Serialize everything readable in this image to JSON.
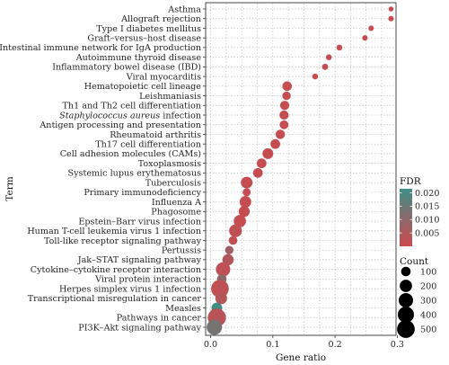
{
  "chart_data": {
    "type": "scatter",
    "xlabel": "Gene ratio",
    "ylabel": "Term",
    "xlim": [
      -0.008,
      0.298
    ],
    "xticks": [
      "0.0",
      "0.1",
      "0.2",
      "0.3"
    ],
    "xtick_values": [
      0.0,
      0.1,
      0.2,
      0.3
    ],
    "grid": true,
    "color_legend": {
      "title": "FDR",
      "ticks": [
        "0.020",
        "0.015",
        "0.010",
        "0.005"
      ],
      "tick_values": [
        0.02,
        0.015,
        0.01,
        0.005
      ],
      "range": [
        0.0,
        0.0215
      ],
      "low_color": "#cc4a4f",
      "high_color": "#3e8e86"
    },
    "size_legend": {
      "title": "Count",
      "labels": [
        "100",
        "200",
        "300",
        "400",
        "500"
      ],
      "values": [
        100,
        200,
        300,
        400,
        500
      ]
    },
    "terms": [
      {
        "term": "Asthma",
        "italic_part": "",
        "ratio": 0.29,
        "count": 10,
        "fdr": 0.001
      },
      {
        "term": "Allograft rejection",
        "italic_part": "",
        "ratio": 0.29,
        "count": 15,
        "fdr": 0.0005
      },
      {
        "term": "Type I diabetes mellitus",
        "italic_part": "",
        "ratio": 0.258,
        "count": 15,
        "fdr": 0.001
      },
      {
        "term": "Graft–versus–host disease",
        "italic_part": "",
        "ratio": 0.248,
        "count": 15,
        "fdr": 0.001
      },
      {
        "term": "Intestinal immune network for IgA production",
        "italic_part": "",
        "ratio": 0.207,
        "count": 20,
        "fdr": 0.001
      },
      {
        "term": "Autoimmune thyroid disease",
        "italic_part": "",
        "ratio": 0.19,
        "count": 20,
        "fdr": 0.001
      },
      {
        "term": "Inflammatory bowel disease (IBD)",
        "italic_part": "",
        "ratio": 0.184,
        "count": 25,
        "fdr": 0.001
      },
      {
        "term": "Viral myocarditis",
        "italic_part": "",
        "ratio": 0.168,
        "count": 20,
        "fdr": 0.001
      },
      {
        "term": "Hematopoietic cell lineage",
        "italic_part": "",
        "ratio": 0.123,
        "count": 100,
        "fdr": 0.001
      },
      {
        "term": "Leishmaniasis",
        "italic_part": "",
        "ratio": 0.122,
        "count": 70,
        "fdr": 0.001
      },
      {
        "term": "Th1 and Th2 cell differentiation",
        "italic_part": "",
        "ratio": 0.119,
        "count": 90,
        "fdr": 0.001
      },
      {
        "term": " infection",
        "italic_part": "Staphylococcus aureus",
        "ratio": 0.118,
        "count": 90,
        "fdr": 0.001
      },
      {
        "term": "Antigen processing and presentation",
        "italic_part": "",
        "ratio": 0.118,
        "count": 80,
        "fdr": 0.001
      },
      {
        "term": "Rheumatoid arthritis",
        "italic_part": "",
        "ratio": 0.112,
        "count": 95,
        "fdr": 0.001
      },
      {
        "term": "Th17 cell differentiation",
        "italic_part": "",
        "ratio": 0.104,
        "count": 105,
        "fdr": 0.001
      },
      {
        "term": "Cell adhesion molecules (CAMs)",
        "italic_part": "",
        "ratio": 0.092,
        "count": 140,
        "fdr": 0.001
      },
      {
        "term": "Toxoplasmosis",
        "italic_part": "",
        "ratio": 0.082,
        "count": 105,
        "fdr": 0.001
      },
      {
        "term": "Systemic lupus erythematosus",
        "italic_part": "",
        "ratio": 0.076,
        "count": 105,
        "fdr": 0.001
      },
      {
        "term": "Tuberculosis",
        "italic_part": "",
        "ratio": 0.058,
        "count": 175,
        "fdr": 0.001
      },
      {
        "term": "Primary immunodeficiency",
        "italic_part": "",
        "ratio": 0.058,
        "count": 60,
        "fdr": 0.001
      },
      {
        "term": "Influenza A",
        "italic_part": "",
        "ratio": 0.056,
        "count": 175,
        "fdr": 0.001
      },
      {
        "term": "Phagosome",
        "italic_part": "",
        "ratio": 0.054,
        "count": 150,
        "fdr": 0.001
      },
      {
        "term": "Epstein–Barr virus infection",
        "italic_part": "",
        "ratio": 0.047,
        "count": 200,
        "fdr": 0.001
      },
      {
        "term": "Human T-cell leukemia virus 1 infection",
        "italic_part": "",
        "ratio": 0.04,
        "count": 220,
        "fdr": 0.002
      },
      {
        "term": "Toll-like receptor signaling pathway",
        "italic_part": "",
        "ratio": 0.036,
        "count": 75,
        "fdr": 0.002
      },
      {
        "term": "Pertussis",
        "italic_part": "",
        "ratio": 0.03,
        "count": 70,
        "fdr": 0.007
      },
      {
        "term": "Jak–STAT signaling pathway",
        "italic_part": "",
        "ratio": 0.028,
        "count": 160,
        "fdr": 0.004
      },
      {
        "term": "Cytokine–cytokine receptor interaction",
        "italic_part": "",
        "ratio": 0.02,
        "count": 300,
        "fdr": 0.002
      },
      {
        "term": "Viral protein interaction",
        "italic_part": "",
        "ratio": 0.018,
        "count": 100,
        "fdr": 0.01
      },
      {
        "term": "Herpes simplex virus 1 infection",
        "italic_part": "",
        "ratio": 0.015,
        "count": 500,
        "fdr": 0.002
      },
      {
        "term": "Transcriptional misregulation in cancer",
        "italic_part": "",
        "ratio": 0.017,
        "count": 180,
        "fdr": 0.004
      },
      {
        "term": "Measles",
        "italic_part": "",
        "ratio": 0.01,
        "count": 140,
        "fdr": 0.021
      },
      {
        "term": "Pathways in cancer",
        "italic_part": "",
        "ratio": 0.01,
        "count": 530,
        "fdr": 0.003
      },
      {
        "term": "PI3K–Akt signaling pathway",
        "italic_part": "",
        "ratio": 0.006,
        "count": 350,
        "fdr": 0.013
      }
    ]
  }
}
